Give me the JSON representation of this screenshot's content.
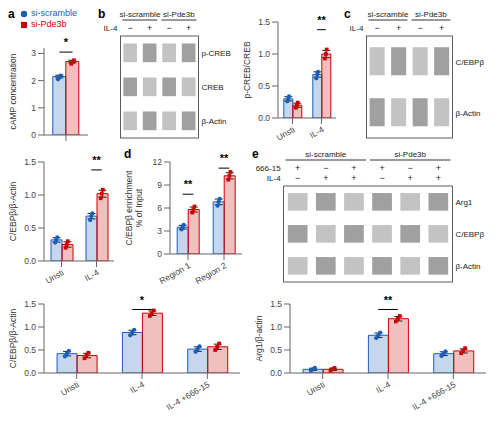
{
  "chart_data": [
    {
      "type": "bar",
      "title": "a",
      "legend": "upper left",
      "categories": [
        null
      ],
      "ylabel": "cAMP concentration",
      "ylim": [
        0,
        3.2
      ],
      "yticks": [
        0,
        1,
        2,
        3
      ],
      "series": [
        {
          "name": "si-scramble",
          "color": "#1a5eb8",
          "marker": "circle",
          "values": [
            2.15
          ],
          "errors": [
            0.05
          ],
          "points": [
            [
              2.05,
              2.12,
              2.18
            ]
          ]
        },
        {
          "name": "si-Pde3b",
          "color": "#cc0000",
          "marker": "square",
          "values": [
            2.7
          ],
          "errors": [
            0.05
          ],
          "points": [
            [
              2.62,
              2.68,
              2.75
            ]
          ]
        }
      ],
      "annotations": [
        {
          "text": "*",
          "y": 3.05
        }
      ]
    },
    {
      "type": "blot",
      "title": "b",
      "groups": [
        "si-scramble",
        "si-Pde3b"
      ],
      "rows": [
        {
          "name": "IL-4",
          "labels": [
            "−",
            "+",
            "−",
            "+"
          ]
        }
      ],
      "bands": [
        "p-CREB",
        "CREB",
        "β-Actin"
      ],
      "color": "#888888"
    },
    {
      "type": "bar",
      "categories": [
        "Unsti",
        "IL-4"
      ],
      "ylabel": "p-CREB/CREB",
      "ylim": [
        0,
        1.5
      ],
      "yticks": [
        {
          "value": 0,
          "label": "0.0"
        },
        0.5,
        {
          "value": 1,
          "label": "1.0"
        },
        1.5
      ],
      "series": [
        {
          "name": "si-scramble",
          "color": "#1a5eb8",
          "marker": "circle",
          "values": [
            0.3,
            0.68
          ],
          "errors": [
            0.03266,
            0.041096
          ],
          "points": [
            [
              0.26,
              0.3,
              0.34
            ],
            [
              0.62,
              0.68,
              0.72
            ]
          ]
        },
        {
          "name": "si-Pde3b",
          "color": "#cc0000",
          "marker": "square",
          "values": [
            0.2,
            1.0
          ],
          "errors": [
            0.03266,
            0.057155
          ],
          "points": [
            [
              0.16,
              0.2,
              0.24
            ],
            [
              0.93,
              1.0,
              1.07
            ]
          ]
        }
      ],
      "annotations": [
        {
          "text": "**",
          "category": "IL-4",
          "y": 1.38
        }
      ]
    },
    {
      "type": "blot",
      "title": "c",
      "groups": [
        "si-scramble",
        "si-Pde3b"
      ],
      "rows": [
        {
          "name": "IL-4",
          "labels": [
            "−",
            "+",
            "−",
            "+"
          ]
        }
      ],
      "bands": [
        "C/EBPβ",
        "β-Actin"
      ],
      "color": "#888888"
    },
    {
      "type": "bar",
      "categories": [
        "Unsti",
        "IL-4"
      ],
      "ylabel": "C/EBPβ/β-Actin",
      "ylim": [
        0,
        1.5
      ],
      "yticks": [
        {
          "value": 0,
          "label": "0.0"
        },
        0.5,
        {
          "value": 1,
          "label": "1.0"
        },
        1.5
      ],
      "series": [
        {
          "name": "si-scramble",
          "color": "#1a5eb8",
          "marker": "circle",
          "values": [
            0.32,
            0.68
          ],
          "errors": [
            0.03266,
            0.041096
          ],
          "points": [
            [
              0.28,
              0.32,
              0.36
            ],
            [
              0.62,
              0.68,
              0.72
            ]
          ]
        },
        {
          "name": "si-Pde3b",
          "color": "#cc0000",
          "marker": "square",
          "values": [
            0.25,
            1.02
          ],
          "errors": [
            0.040825,
            0.053125
          ],
          "points": [
            [
              0.2,
              0.25,
              0.3
            ],
            [
              0.95,
              1.02,
              1.08
            ]
          ]
        }
      ],
      "annotations": [
        {
          "text": "**",
          "category": "IL-4",
          "y": 1.38
        }
      ]
    },
    {
      "type": "bar",
      "title": "d",
      "categories": [
        "Region 1",
        "Region 2"
      ],
      "ylabel": "C/EBPβ enrichment\n% of Input",
      "ylim": [
        0,
        12
      ],
      "yticks": [
        0,
        3,
        6,
        9,
        12
      ],
      "series": [
        {
          "name": "si-scramble",
          "color": "#1a5eb8",
          "marker": "circle",
          "values": [
            3.5,
            6.8
          ],
          "errors": [
            0.244949,
            0.368179
          ],
          "points": [
            [
              3.2,
              3.5,
              3.8
            ],
            [
              6.3,
              6.8,
              7.2
            ]
          ]
        },
        {
          "name": "si-Pde3b",
          "color": "#cc0000",
          "marker": "square",
          "values": [
            5.8,
            10.2
          ],
          "errors": [
            0.326599,
            0.408248
          ],
          "points": [
            [
              5.4,
              5.8,
              6.2
            ],
            [
              9.7,
              10.2,
              10.7
            ]
          ]
        }
      ],
      "annotations": [
        {
          "text": "**",
          "category": "Region 1",
          "y": 7.8
        },
        {
          "text": "**",
          "category": "Region 2",
          "y": 11.2
        }
      ]
    },
    {
      "type": "blot",
      "title": "e",
      "groups": [
        "si-scramble",
        "si-Pde3b"
      ],
      "rows": [
        {
          "name": "666-15",
          "labels": [
            "+",
            "−",
            "+",
            "+",
            "−",
            "+"
          ]
        },
        {
          "name": "IL-4",
          "labels": [
            "−",
            "+",
            "+",
            "−",
            "+",
            "+"
          ]
        }
      ],
      "bands": [
        "Arg1",
        "C/EBPβ",
        "β-Actin"
      ],
      "color": "#888888"
    },
    {
      "type": "bar",
      "categories": [
        "Unsti",
        "IL-4",
        "IL-4 +666-15"
      ],
      "ylabel": "C/EBPβ/β-Actin",
      "ylim": [
        0,
        1.5
      ],
      "yticks": [
        {
          "value": 0,
          "label": "0.0"
        },
        0.5,
        {
          "value": 1,
          "label": "1.0"
        },
        1.5
      ],
      "series": [
        {
          "name": "si-scramble",
          "color": "#1a5eb8",
          "marker": "circle",
          "values": [
            0.42,
            0.88,
            0.52
          ],
          "errors": [
            0.04899,
            0.04899,
            0.04899
          ],
          "points": [
            [
              0.36,
              0.42,
              0.48
            ],
            [
              0.82,
              0.88,
              0.94
            ],
            [
              0.46,
              0.52,
              0.58
            ]
          ]
        },
        {
          "name": "si-Pde3b",
          "color": "#cc0000",
          "marker": "square",
          "values": [
            0.38,
            1.3,
            0.57
          ],
          "errors": [
            0.04899,
            0.04899,
            0.057155
          ],
          "points": [
            [
              0.32,
              0.38,
              0.44
            ],
            [
              1.24,
              1.3,
              1.36
            ],
            [
              0.5,
              0.57,
              0.64
            ]
          ]
        }
      ],
      "annotations": [
        {
          "text": "*",
          "category": "IL-4",
          "y": 1.38
        }
      ]
    },
    {
      "type": "bar",
      "categories": [
        "Unsti",
        "IL-4",
        "IL-4 +666-15"
      ],
      "ylabel": "Arg1/β-actin",
      "ylim": [
        0,
        1.5
      ],
      "yticks": [
        {
          "value": 0,
          "label": "0.0"
        },
        0.5,
        {
          "value": 1,
          "label": "1.0"
        },
        1.5
      ],
      "series": [
        {
          "name": "si-scramble",
          "color": "#1a5eb8",
          "marker": "circle",
          "values": [
            0.08,
            0.82,
            0.42
          ],
          "errors": [
            0.024495,
            0.04899,
            0.040825
          ],
          "points": [
            [
              0.05,
              0.08,
              0.11
            ],
            [
              0.76,
              0.82,
              0.88
            ],
            [
              0.37,
              0.42,
              0.47
            ]
          ]
        },
        {
          "name": "si-Pde3b",
          "color": "#cc0000",
          "marker": "square",
          "values": [
            0.08,
            1.18,
            0.48
          ],
          "errors": [
            0.024495,
            0.04899,
            0.044969
          ],
          "points": [
            [
              0.05,
              0.08,
              0.11
            ],
            [
              1.12,
              1.18,
              1.24
            ],
            [
              0.43,
              0.48,
              0.54
            ]
          ]
        }
      ],
      "annotations": [
        {
          "text": "**",
          "category": "IL-4",
          "y": 1.38
        }
      ]
    }
  ]
}
